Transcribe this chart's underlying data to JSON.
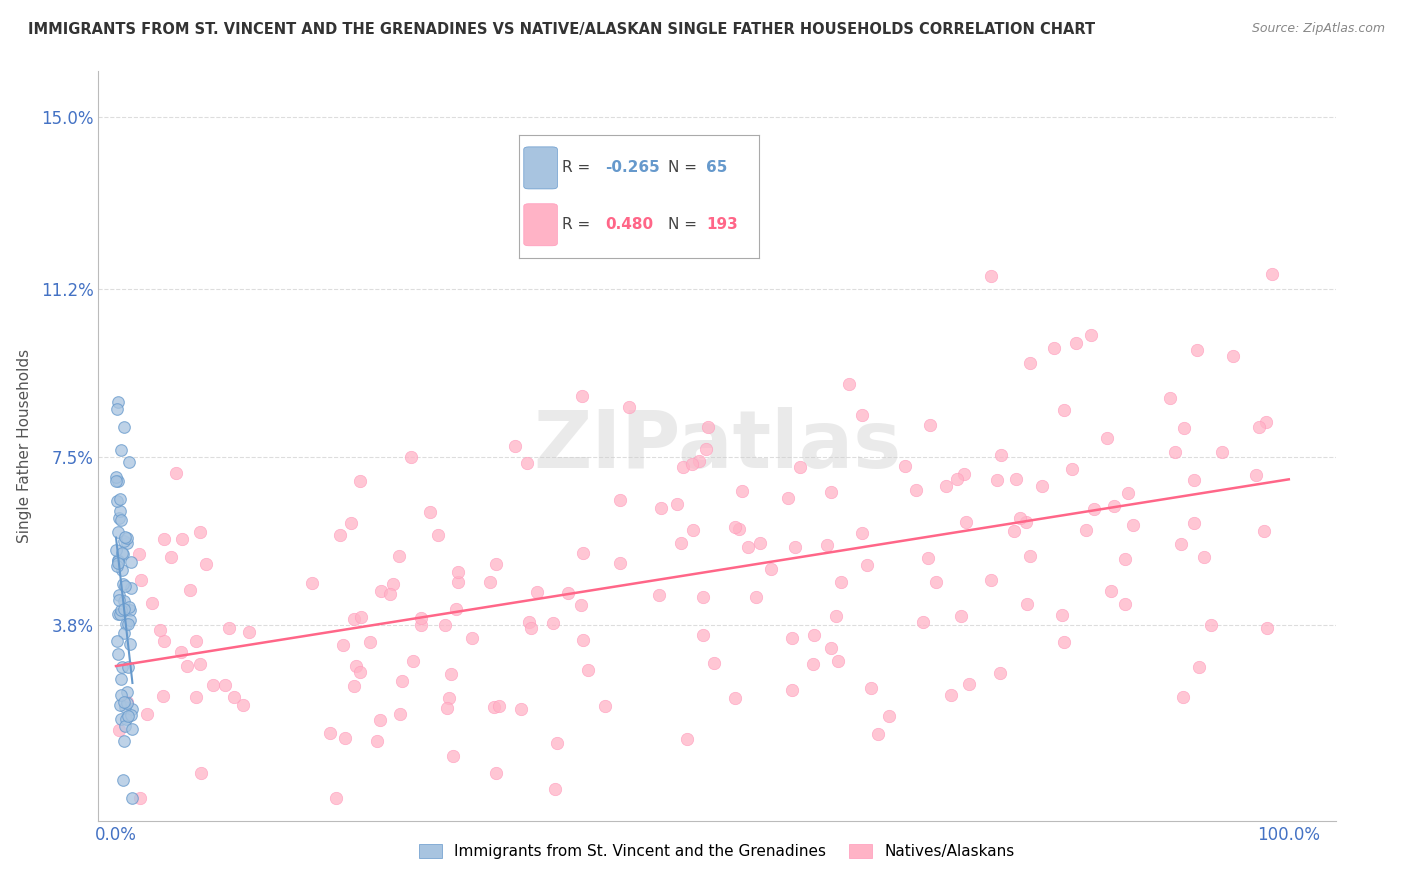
{
  "title": "IMMIGRANTS FROM ST. VINCENT AND THE GRENADINES VS NATIVE/ALASKAN SINGLE FATHER HOUSEHOLDS CORRELATION CHART",
  "source": "Source: ZipAtlas.com",
  "ylabel": "Single Father Households",
  "xlabel": "",
  "blue_R": -0.265,
  "blue_N": 65,
  "pink_R": 0.48,
  "pink_N": 193,
  "blue_color": "#a8c4e0",
  "blue_edge_color": "#6699cc",
  "pink_color": "#ffb3c6",
  "pink_edge_color": "#ff99bb",
  "blue_line_color": "#6699cc",
  "pink_line_color": "#ff6688",
  "yticks": [
    0.0,
    0.038,
    0.075,
    0.112,
    0.15
  ],
  "ytick_labels": [
    "",
    "3.8%",
    "7.5%",
    "11.2%",
    "15.0%"
  ],
  "xticks": [
    0.0,
    1.0
  ],
  "xtick_labels": [
    "0.0%",
    "100.0%"
  ],
  "xlim": [
    -0.015,
    1.04
  ],
  "ylim": [
    -0.005,
    0.16
  ],
  "legend_labels": [
    "Immigrants from St. Vincent and the Grenadines",
    "Natives/Alaskans"
  ],
  "title_color": "#333333",
  "tick_color": "#4472c4",
  "grid_color": "#dddddd",
  "watermark": "ZIPatlas",
  "watermark_color": "#cccccc"
}
